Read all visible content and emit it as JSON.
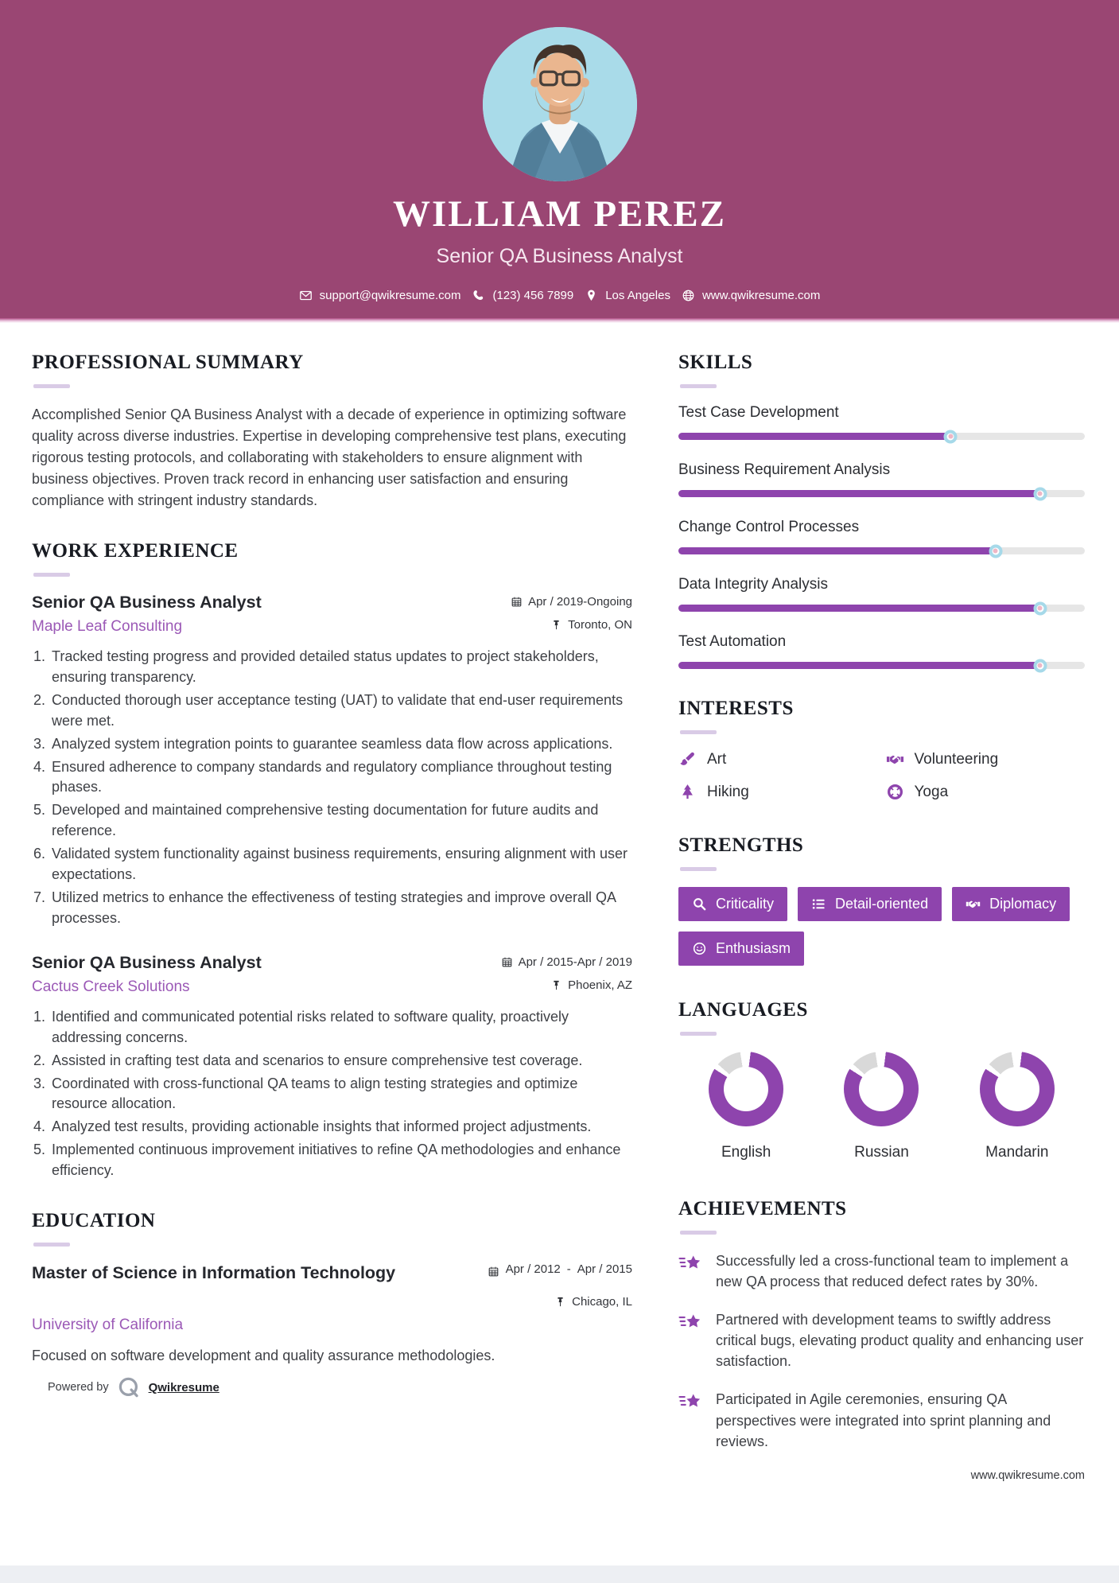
{
  "header": {
    "name": "WILLIAM PEREZ",
    "title": "Senior QA Business Analyst",
    "contact": {
      "email": "support@qwikresume.com",
      "phone": "(123) 456 7899",
      "location": "Los Angeles",
      "website": "www.qwikresume.com"
    }
  },
  "summary": {
    "heading": "PROFESSIONAL SUMMARY",
    "text": "Accomplished Senior QA Business Analyst with a decade of experience in optimizing software quality across diverse industries. Expertise in developing comprehensive test plans, executing rigorous testing protocols, and collaborating with stakeholders to ensure alignment with business objectives. Proven track record in enhancing user satisfaction and ensuring compliance with stringent industry standards."
  },
  "work_experience": {
    "heading": "WORK EXPERIENCE",
    "jobs": [
      {
        "title": "Senior QA Business Analyst",
        "company": "Maple Leaf Consulting",
        "dates": "Apr / 2019-Ongoing",
        "location": "Toronto, ON",
        "bullets": [
          "Tracked testing progress and provided detailed status updates to project stakeholders, ensuring transparency.",
          "Conducted thorough user acceptance testing (UAT) to validate that end-user requirements were met.",
          "Analyzed system integration points to guarantee seamless data flow across applications.",
          "Ensured adherence to company standards and regulatory compliance throughout testing phases.",
          "Developed and maintained comprehensive testing documentation for future audits and reference.",
          "Validated system functionality against business requirements, ensuring alignment with user expectations.",
          "Utilized metrics to enhance the effectiveness of testing strategies and improve overall QA processes."
        ]
      },
      {
        "title": "Senior QA Business Analyst",
        "company": "Cactus Creek Solutions",
        "dates": "Apr / 2015-Apr / 2019",
        "location": "Phoenix, AZ",
        "bullets": [
          "Identified and communicated potential risks related to software quality, proactively addressing concerns.",
          "Assisted in crafting test data and scenarios to ensure comprehensive test coverage.",
          "Coordinated with cross-functional QA teams to align testing strategies and optimize resource allocation.",
          "Analyzed test results, providing actionable insights that informed project adjustments.",
          "Implemented continuous improvement initiatives to refine QA methodologies and enhance efficiency."
        ]
      }
    ]
  },
  "education": {
    "heading": "EDUCATION",
    "degree": "Master of Science in Information Technology",
    "school": "University of California",
    "date_start": "Apr / 2012",
    "date_separator": "-",
    "date_end": "Apr / 2015",
    "location": "Chicago, IL",
    "description": "Focused on software development and quality assurance methodologies."
  },
  "skills": {
    "heading": "SKILLS",
    "items": [
      {
        "name": "Test Case Development",
        "level": 67
      },
      {
        "name": "Business Requirement Analysis",
        "level": 89
      },
      {
        "name": "Change Control Processes",
        "level": 78
      },
      {
        "name": "Data Integrity Analysis",
        "level": 89
      },
      {
        "name": "Test Automation",
        "level": 89
      }
    ]
  },
  "interests": {
    "heading": "INTERESTS",
    "items": [
      {
        "label": "Art",
        "icon": "paintbrush-icon"
      },
      {
        "label": "Volunteering",
        "icon": "handshake-icon"
      },
      {
        "label": "Hiking",
        "icon": "pine-tree-icon"
      },
      {
        "label": "Yoga",
        "icon": "lifebuoy-icon"
      }
    ]
  },
  "strengths": {
    "heading": "STRENGTHS",
    "items": [
      {
        "label": "Criticality",
        "icon": "magnifier-icon"
      },
      {
        "label": "Detail-oriented",
        "icon": "list-icon"
      },
      {
        "label": "Diplomacy",
        "icon": "handshake-icon"
      },
      {
        "label": "Enthusiasm",
        "icon": "smiley-icon"
      }
    ]
  },
  "languages": {
    "heading": "LANGUAGES",
    "items": [
      {
        "label": "English",
        "percent": 80
      },
      {
        "label": "Russian",
        "percent": 80
      },
      {
        "label": "Mandarin",
        "percent": 80
      }
    ]
  },
  "achievements": {
    "heading": "ACHIEVEMENTS",
    "items": [
      "Successfully led a cross-functional team to implement a new QA process that reduced defect rates by 30%.",
      "Partnered with development teams to swiftly address critical bugs, elevating product quality and enhancing user satisfaction.",
      "Participated in Agile ceremonies, ensuring QA perspectives were integrated into sprint planning and reviews."
    ]
  },
  "footer": {
    "powered_by_label": "Powered by",
    "powered_by_brand": "Qwikresume",
    "site": "www.qwikresume.com"
  },
  "colors": {
    "header_background": "#9a4673",
    "accent_purple": "#8e44ad",
    "company_link_purple": "#9b59b6",
    "photo_background": "#a9dbe9"
  }
}
